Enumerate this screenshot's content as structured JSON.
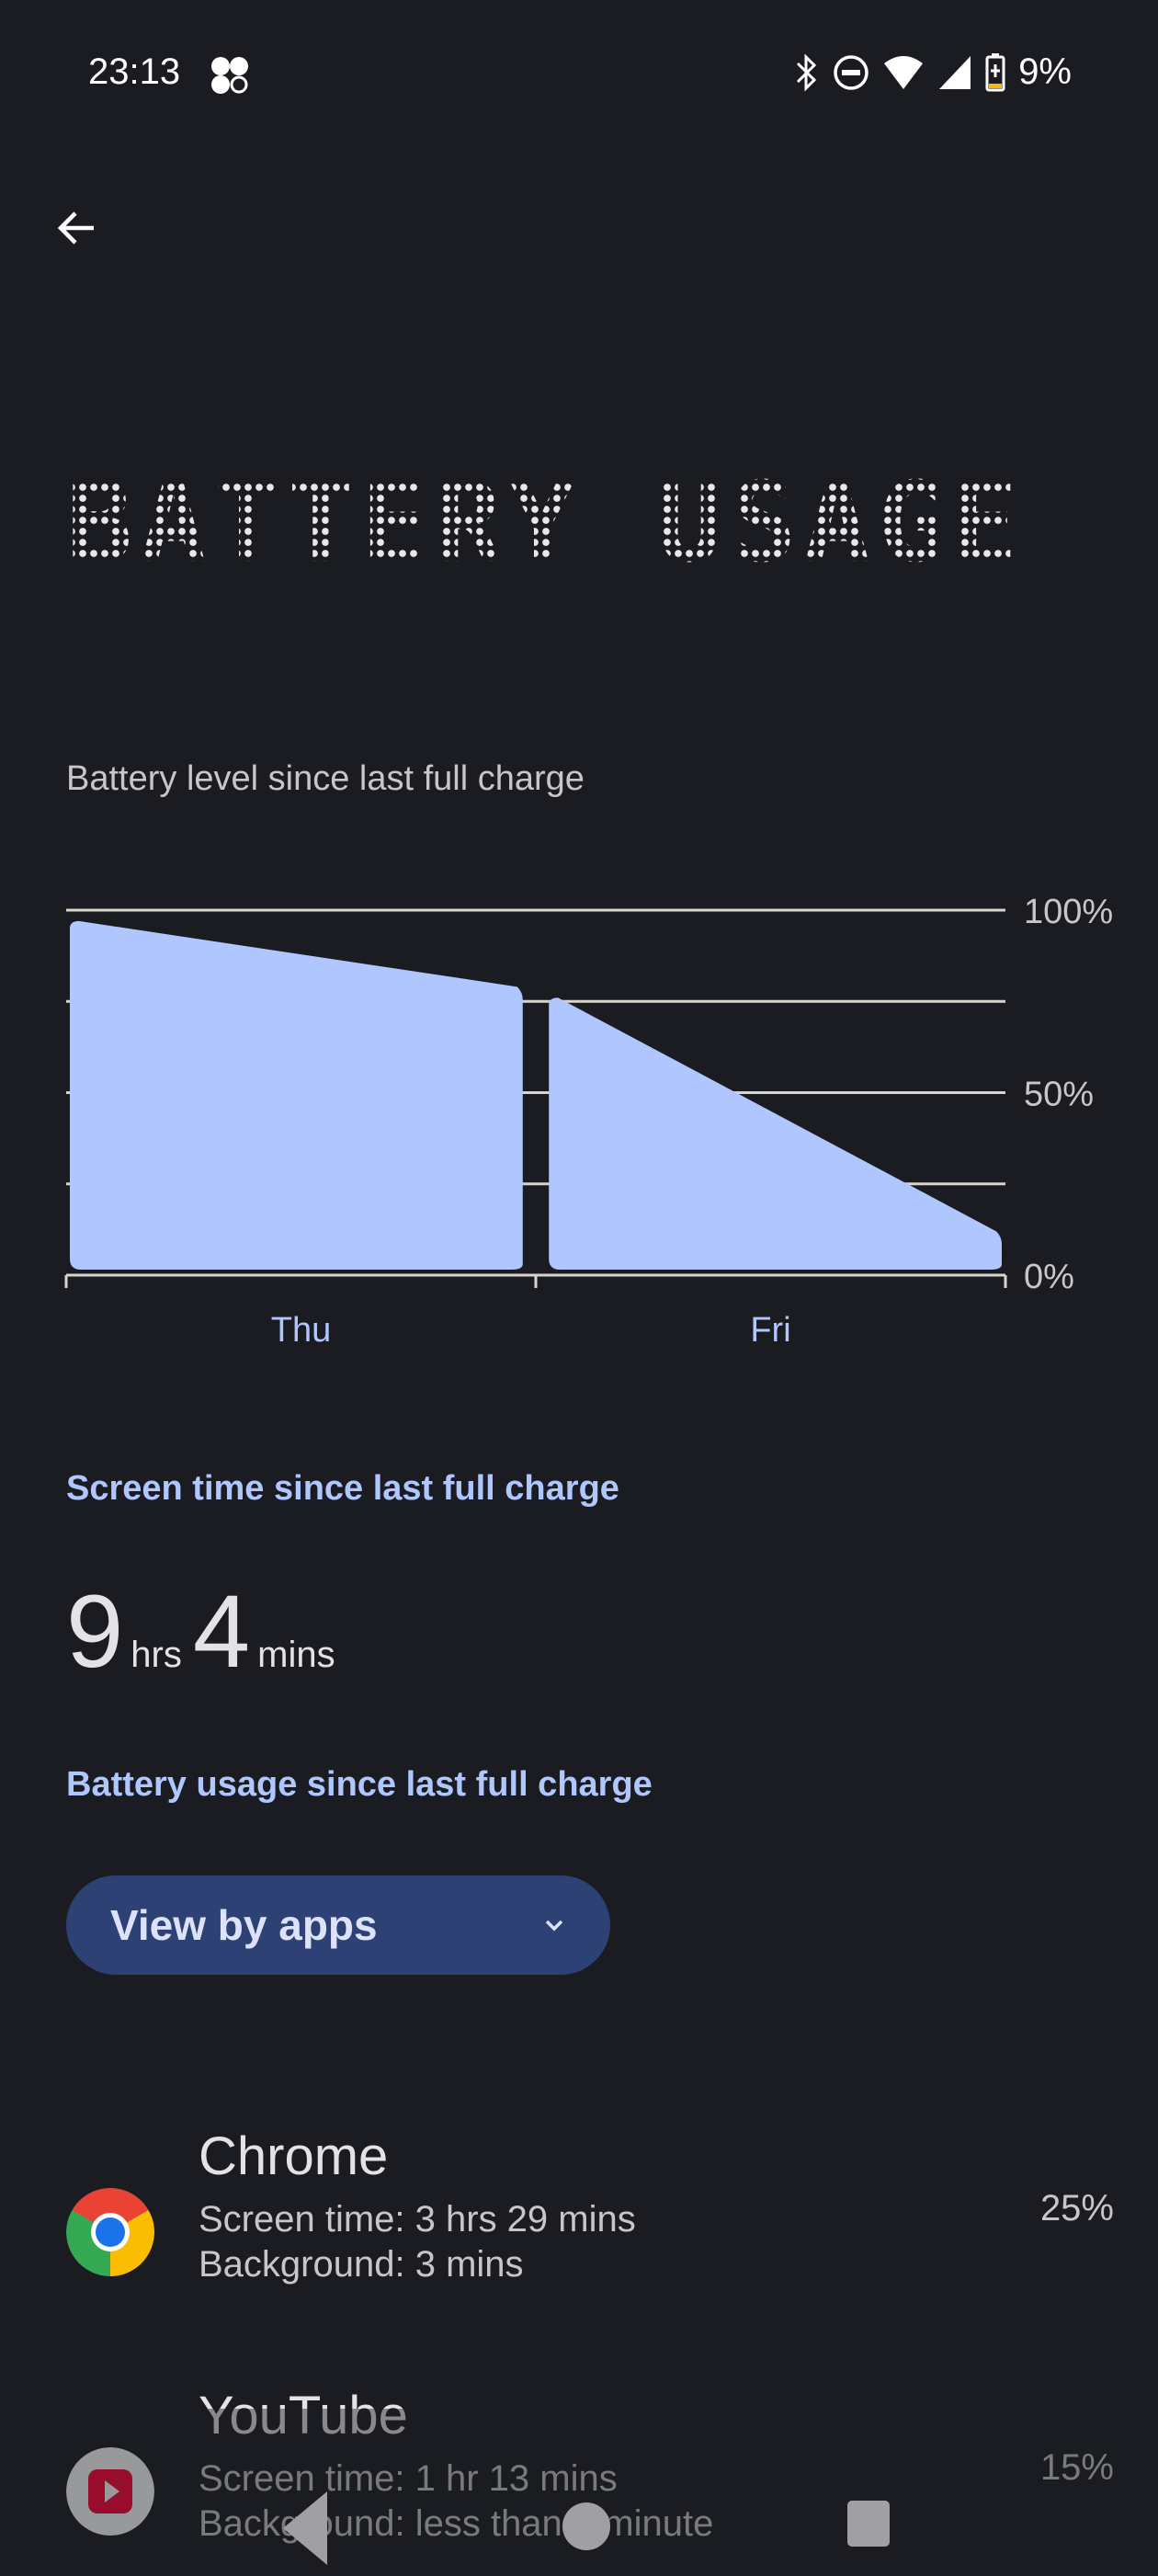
{
  "status_bar": {
    "time": "23:13",
    "battery": "9%",
    "icons": [
      "fan-icon",
      "bluetooth-icon",
      "dnd-icon",
      "wifi-icon",
      "signal-icon",
      "battery-charging-icon"
    ]
  },
  "header": {
    "back": "back-arrow-icon",
    "title": "BATTERY USAGE"
  },
  "chart_section": {
    "label": "Battery level since last full charge"
  },
  "chart_data": {
    "type": "area",
    "ylim": [
      0,
      100
    ],
    "y_tick_labels": [
      "100%",
      "50%",
      "0%"
    ],
    "y_gridlines": [
      100,
      75,
      50,
      25,
      0
    ],
    "x_tick_labels": [
      "Thu",
      "Fri"
    ],
    "xlim": [
      0,
      2
    ],
    "color": "#b0c6ff",
    "series": [
      {
        "segments": [
          {
            "x": [
              0,
              0.98
            ],
            "y": [
              97,
              79
            ]
          },
          {
            "x": [
              1.02,
              2.0
            ],
            "y": [
              76,
              12
            ]
          }
        ]
      }
    ]
  },
  "screen_time": {
    "label": "Screen time since last full charge",
    "hours": "9",
    "hours_unit": "hrs",
    "minutes": "4",
    "minutes_unit": "mins"
  },
  "usage": {
    "label": "Battery usage since last full charge",
    "dropdown": "View by apps"
  },
  "apps": [
    {
      "name": "Chrome",
      "screen": "Screen time: 3 hrs 29 mins",
      "background": "Background: 3 mins",
      "percent": "25%"
    },
    {
      "name": "YouTube",
      "screen": "Screen time: 1 hr 13 mins",
      "background": "Background: less than a minute",
      "percent": "15%"
    }
  ]
}
